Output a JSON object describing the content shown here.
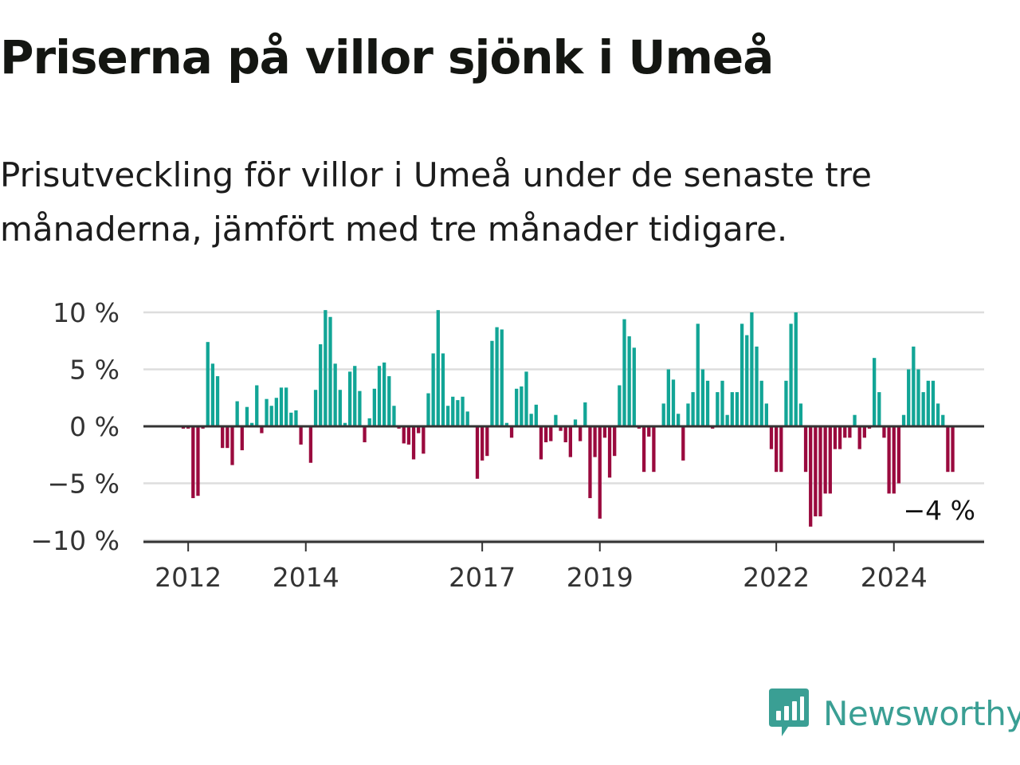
{
  "header": {
    "title": "Priserna på villor sjönk i Umeå",
    "subtitle": "Prisutveckling för villor i Umeå under de senaste tre månaderna, jämfört med tre månader tidigare."
  },
  "brand": {
    "name": "Newsworthy",
    "icon": "newsworthy-chart-bubble-icon",
    "color": "#3a9f94"
  },
  "colors": {
    "positive": "#12a596",
    "negative": "#9a0a3e",
    "grid": "#dddddd",
    "axis": "#333333"
  },
  "chart_data": {
    "type": "bar",
    "title": "Priserna på villor sjönk i Umeå",
    "xlabel": "",
    "ylabel": "",
    "x_start": "2011-12",
    "unit": "%",
    "ylim": [
      -10,
      10
    ],
    "yticks": [
      10,
      5,
      0,
      -5,
      -10
    ],
    "ytick_labels": [
      "10 %",
      "5 %",
      "0 %",
      "−5 %",
      "−10 %"
    ],
    "xticks": [
      {
        "label": "2012",
        "month": "2012-01"
      },
      {
        "label": "2014",
        "month": "2014-01"
      },
      {
        "label": "2017",
        "month": "2017-01"
      },
      {
        "label": "2019",
        "month": "2019-01"
      },
      {
        "label": "2022",
        "month": "2022-01"
      },
      {
        "label": "2024",
        "month": "2024-01"
      }
    ],
    "grid": true,
    "end_label": "−4 %",
    "values": [
      -0.2,
      -0.2,
      -6.3,
      -6.1,
      -0.2,
      7.4,
      5.5,
      4.4,
      -1.9,
      -1.9,
      -3.4,
      2.2,
      -2.1,
      1.7,
      0.3,
      3.6,
      -0.6,
      2.4,
      1.8,
      2.5,
      3.4,
      3.4,
      1.2,
      1.4,
      -1.6,
      -0.1,
      -3.2,
      3.2,
      7.2,
      10.2,
      9.6,
      5.5,
      3.2,
      0.3,
      4.8,
      5.3,
      3.1,
      -1.4,
      0.7,
      3.3,
      5.3,
      5.6,
      4.4,
      1.8,
      -0.2,
      -1.5,
      -1.6,
      -2.9,
      -0.6,
      -2.4,
      2.9,
      6.4,
      10.2,
      6.4,
      1.8,
      2.6,
      2.3,
      2.6,
      1.3,
      -0.1,
      -4.6,
      -3.0,
      -2.6,
      7.5,
      8.7,
      8.5,
      0.3,
      -1.0,
      3.3,
      3.5,
      4.8,
      1.1,
      1.9,
      -2.9,
      -1.4,
      -1.3,
      1.0,
      -0.4,
      -1.4,
      -2.7,
      0.6,
      -1.3,
      2.1,
      -6.3,
      -2.7,
      -8.1,
      -1.0,
      -4.5,
      -2.6,
      3.6,
      9.4,
      7.9,
      6.9,
      -0.2,
      -4.0,
      -0.9,
      -4.0,
      -0.1,
      2.0,
      5.0,
      4.1,
      1.1,
      -3.0,
      2.0,
      3.0,
      9.0,
      5.0,
      4.0,
      -0.2,
      3.0,
      4.0,
      1.0,
      3.0,
      3.0,
      9.0,
      8.0,
      10.0,
      7.0,
      4.0,
      2.0,
      -2.0,
      -4.0,
      -4.0,
      4.0,
      9.0,
      10.0,
      2.0,
      -4.0,
      -8.8,
      -7.9,
      -7.9,
      -5.9,
      -5.9,
      -2.0,
      -2.0,
      -1.0,
      -1.0,
      1.0,
      -2.0,
      -1.0,
      -0.2,
      6.0,
      3.0,
      -1.0,
      -5.9,
      -5.9,
      -5.0,
      1.0,
      5.0,
      7.0,
      5.0,
      3.0,
      4.0,
      4.0,
      2.0,
      1.0,
      -4.0,
      -4.0
    ]
  }
}
